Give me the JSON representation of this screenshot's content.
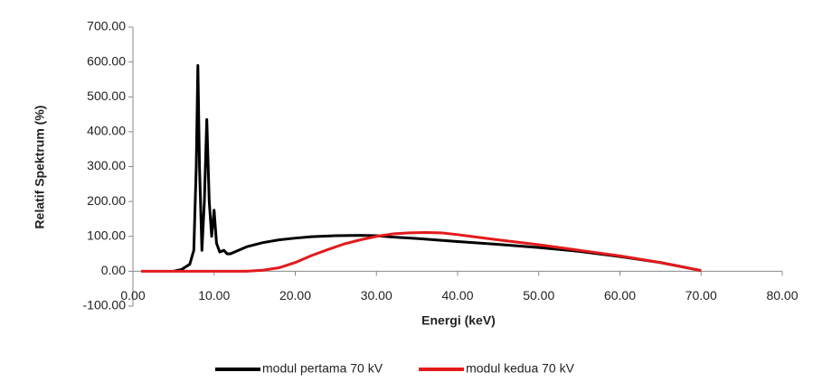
{
  "chart_data": {
    "type": "line",
    "xlabel": "Energi (keV)",
    "ylabel": "Relatif Spektrum (%)",
    "xlim": [
      0,
      80
    ],
    "ylim": [
      -100,
      700
    ],
    "xticks": [
      {
        "value": 0,
        "label": "0.00"
      },
      {
        "value": 10,
        "label": "10.00"
      },
      {
        "value": 20,
        "label": "20.00"
      },
      {
        "value": 30,
        "label": "30.00"
      },
      {
        "value": 40,
        "label": "40.00"
      },
      {
        "value": 50,
        "label": "50.00"
      },
      {
        "value": 60,
        "label": "60.00"
      },
      {
        "value": 70,
        "label": "70.00"
      },
      {
        "value": 80,
        "label": "80.00"
      }
    ],
    "yticks": [
      {
        "value": -100,
        "label": "-100.00"
      },
      {
        "value": 0,
        "label": "0.00"
      },
      {
        "value": 100,
        "label": "100.00"
      },
      {
        "value": 200,
        "label": "200.00"
      },
      {
        "value": 300,
        "label": "300.00"
      },
      {
        "value": 400,
        "label": "400.00"
      },
      {
        "value": 500,
        "label": "500.00"
      },
      {
        "value": 600,
        "label": "600.00"
      },
      {
        "value": 700,
        "label": "700.00"
      }
    ],
    "legend": "bottom",
    "series": [
      {
        "name": "modul pertama 70 kV",
        "color": "#000000",
        "x": [
          5,
          6,
          7,
          7.5,
          7.8,
          8.0,
          8.2,
          8.5,
          8.8,
          9.1,
          9.4,
          9.7,
          10,
          10.3,
          10.7,
          11.2,
          11.6,
          12,
          13,
          14,
          16,
          18,
          20,
          22,
          25,
          28,
          30,
          32,
          35,
          40,
          45,
          50,
          55,
          60,
          65,
          70
        ],
        "values": [
          0,
          5,
          20,
          60,
          300,
          590,
          300,
          60,
          200,
          435,
          200,
          100,
          175,
          80,
          55,
          60,
          50,
          50,
          60,
          70,
          82,
          90,
          95,
          99,
          102,
          103,
          102,
          98,
          94,
          85,
          77,
          68,
          57,
          42,
          25,
          2
        ]
      },
      {
        "name": "modul kedua 70 kV",
        "color": "#e31a1c",
        "x": [
          1,
          10,
          14,
          16,
          18,
          20,
          22,
          24,
          26,
          28,
          30,
          32,
          34,
          36,
          38,
          40,
          45,
          50,
          55,
          60,
          65,
          70
        ],
        "values": [
          0,
          0,
          0,
          3,
          10,
          25,
          45,
          62,
          78,
          90,
          100,
          107,
          110,
          111,
          110,
          105,
          90,
          76,
          60,
          44,
          25,
          2
        ]
      }
    ]
  }
}
